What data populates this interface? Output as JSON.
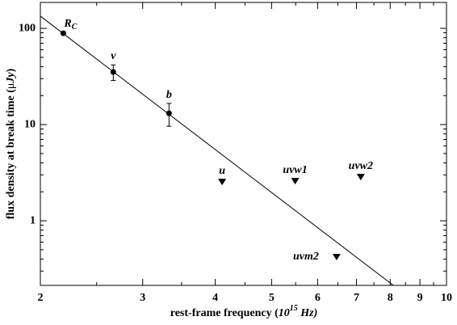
{
  "chart_data": {
    "type": "scatter",
    "x_label": [
      "rest-frame frequency (",
      "10",
      "15",
      " Hz)"
    ],
    "y_label": [
      "flux density at break time (",
      "μ",
      "Jy",
      ")"
    ],
    "log_x": true,
    "log_y": true,
    "xlim": [
      2,
      10
    ],
    "xticks": [
      2,
      3,
      4,
      5,
      6,
      7,
      8,
      9,
      10
    ],
    "ylim": [
      0.213,
      186
    ],
    "yticks": [
      1,
      10,
      100
    ],
    "color": "#000000",
    "series": [
      {
        "marker": "circle",
        "x": [
          2.19,
          2.67,
          3.33
        ],
        "values": [
          89,
          35.2,
          13.1
        ],
        "errors": [
          null,
          6.5,
          3.5
        ],
        "labels": [
          "R",
          "v",
          "b"
        ],
        "label_subscripts": [
          "C",
          null,
          null
        ]
      },
      {
        "marker": "triangle-down",
        "x": [
          4.11,
          5.49,
          7.12,
          6.47
        ],
        "values": [
          2.53,
          2.58,
          2.84,
          0.419
        ],
        "labels": [
          "u",
          "uvw1",
          "uvw2",
          "uvm2"
        ]
      },
      {
        "marker": "line",
        "x": [
          2,
          8.1
        ],
        "values": [
          134,
          0.213
        ]
      }
    ]
  }
}
